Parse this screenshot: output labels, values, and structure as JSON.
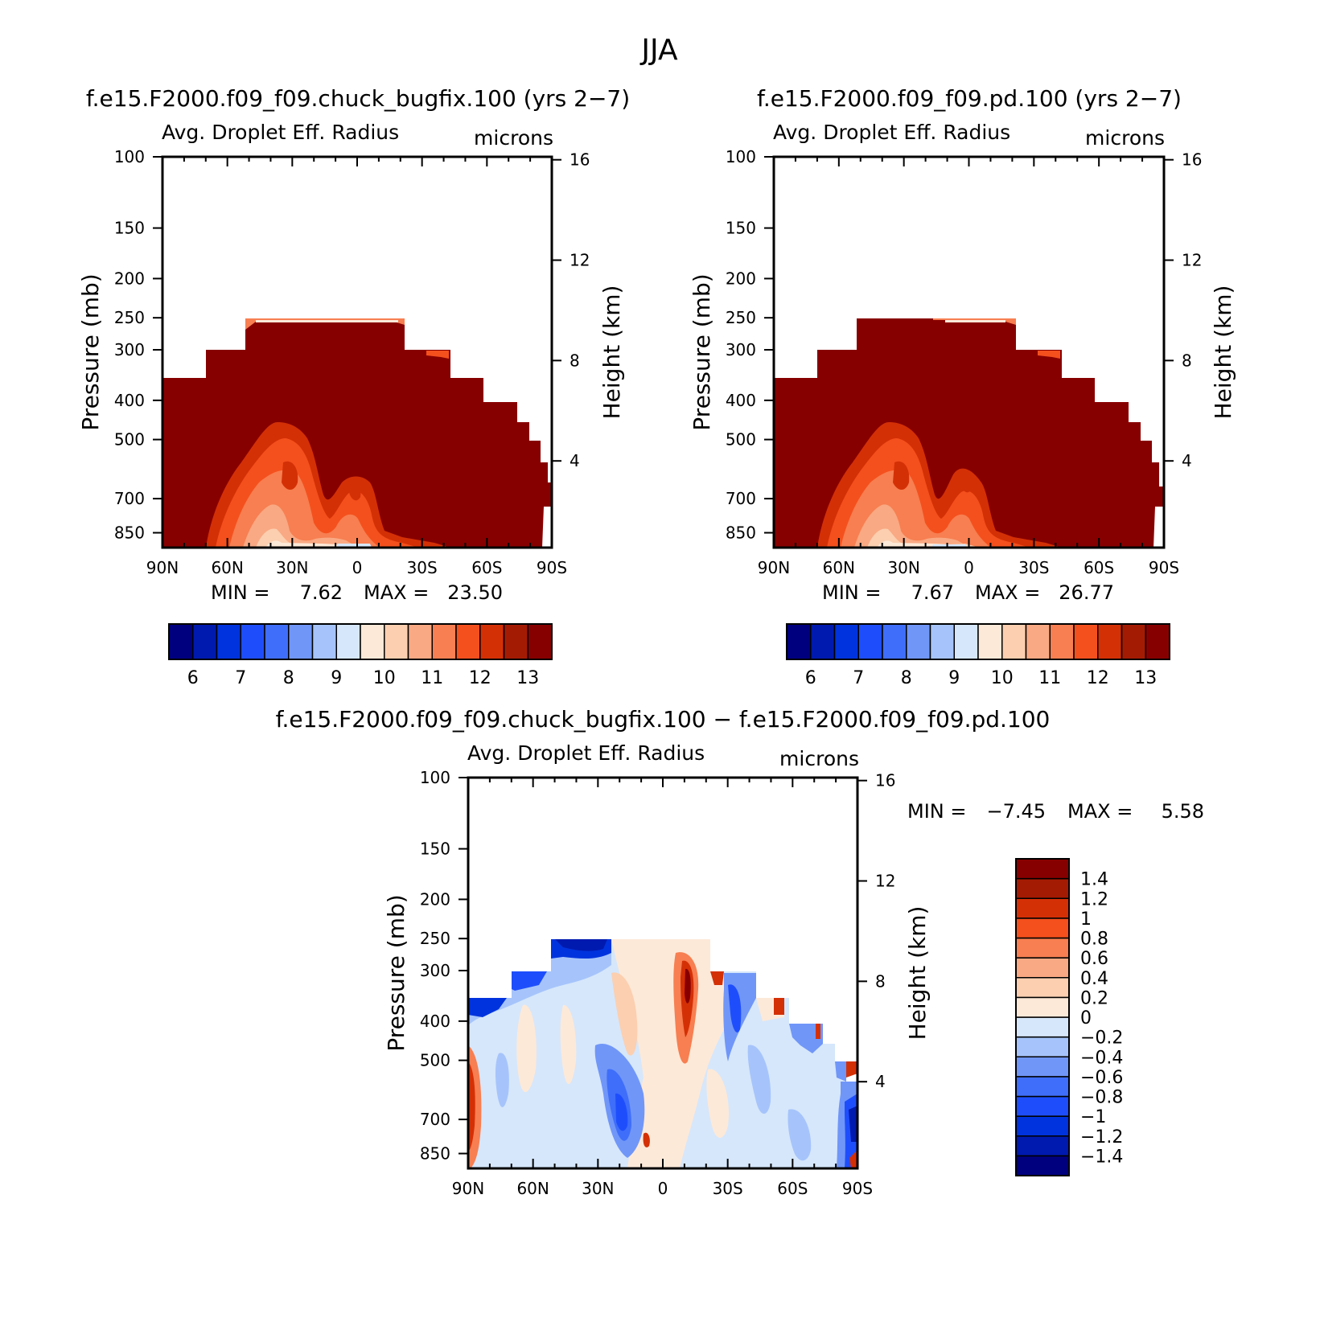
{
  "page_title": "JJA",
  "chart_data": [
    {
      "type": "heatmap",
      "id": "left",
      "title": "f.e15.F2000.f09_f09.chuck_bugfix.100 (yrs 2−7)",
      "variable": "Avg. Droplet Eff. Radius",
      "units": "microns",
      "ylabel": "Pressure (mb)",
      "y2label": "Height (km)",
      "x_ticks": [
        "90N",
        "60N",
        "30N",
        "0",
        "30S",
        "60S",
        "90S"
      ],
      "x_range": [
        90,
        -90
      ],
      "y_ticks": [
        100,
        150,
        200,
        250,
        300,
        400,
        500,
        700,
        850
      ],
      "y_range": [
        100,
        925
      ],
      "y2_ticks": [
        16,
        12,
        8,
        4
      ],
      "min_label": "MIN =",
      "min_value": "7.62",
      "max_label": "MAX =",
      "max_value": "23.50",
      "colorbar": {
        "orientation": "horizontal",
        "colors": [
          "#00007f",
          "#001aaf",
          "#0033dd",
          "#1e4efc",
          "#3f6efa",
          "#7096f8",
          "#a6c4fb",
          "#d6e7fb",
          "#fde9d8",
          "#fbcfb0",
          "#f9a983",
          "#f77f51",
          "#f4501d",
          "#d43006",
          "#a41b03",
          "#870000"
        ],
        "labels": [
          "6",
          "7",
          "8",
          "9",
          "10",
          "11",
          "12",
          "13"
        ]
      }
    },
    {
      "type": "heatmap",
      "id": "right",
      "title": "f.e15.F2000.f09_f09.pd.100 (yrs 2−7)",
      "variable": "Avg. Droplet Eff. Radius",
      "units": "microns",
      "ylabel": "Pressure (mb)",
      "y2label": "Height (km)",
      "x_ticks": [
        "90N",
        "60N",
        "30N",
        "0",
        "30S",
        "60S",
        "90S"
      ],
      "x_range": [
        90,
        -90
      ],
      "y_ticks": [
        100,
        150,
        200,
        250,
        300,
        400,
        500,
        700,
        850
      ],
      "y_range": [
        100,
        925
      ],
      "y2_ticks": [
        16,
        12,
        8,
        4
      ],
      "min_label": "MIN =",
      "min_value": "7.67",
      "max_label": "MAX =",
      "max_value": "26.77",
      "colorbar": {
        "orientation": "horizontal",
        "colors": [
          "#00007f",
          "#001aaf",
          "#0033dd",
          "#1e4efc",
          "#3f6efa",
          "#7096f8",
          "#a6c4fb",
          "#d6e7fb",
          "#fde9d8",
          "#fbcfb0",
          "#f9a983",
          "#f77f51",
          "#f4501d",
          "#d43006",
          "#a41b03",
          "#870000"
        ],
        "labels": [
          "6",
          "7",
          "8",
          "9",
          "10",
          "11",
          "12",
          "13"
        ]
      }
    },
    {
      "type": "heatmap",
      "id": "diff",
      "title": "f.e15.F2000.f09_f09.chuck_bugfix.100 − f.e15.F2000.f09_f09.pd.100",
      "variable": "Avg. Droplet Eff. Radius",
      "units": "microns",
      "ylabel": "Pressure (mb)",
      "y2label": "Height (km)",
      "x_ticks": [
        "90N",
        "60N",
        "30N",
        "0",
        "30S",
        "60S",
        "90S"
      ],
      "x_range": [
        90,
        -90
      ],
      "y_ticks": [
        100,
        150,
        200,
        250,
        300,
        400,
        500,
        700,
        850
      ],
      "y_range": [
        100,
        925
      ],
      "y2_ticks": [
        16,
        12,
        8,
        4
      ],
      "min_label": "MIN =",
      "min_value": "−7.45",
      "max_label": "MAX =",
      "max_value": "5.58",
      "colorbar": {
        "orientation": "vertical",
        "colors": [
          "#00007f",
          "#001aaf",
          "#0033dd",
          "#1e4efc",
          "#3f6efa",
          "#7096f8",
          "#a6c4fb",
          "#d6e7fb",
          "#fde9d8",
          "#fbcfb0",
          "#f9a983",
          "#f77f51",
          "#f4501d",
          "#d43006",
          "#a41b03",
          "#870000"
        ],
        "labels": [
          "1.4",
          "1.2",
          "1",
          "0.8",
          "0.6",
          "0.4",
          "0.2",
          "0",
          "−0.2",
          "−0.4",
          "−0.6",
          "−0.8",
          "−1",
          "−1.2",
          "−1.4"
        ]
      }
    }
  ]
}
